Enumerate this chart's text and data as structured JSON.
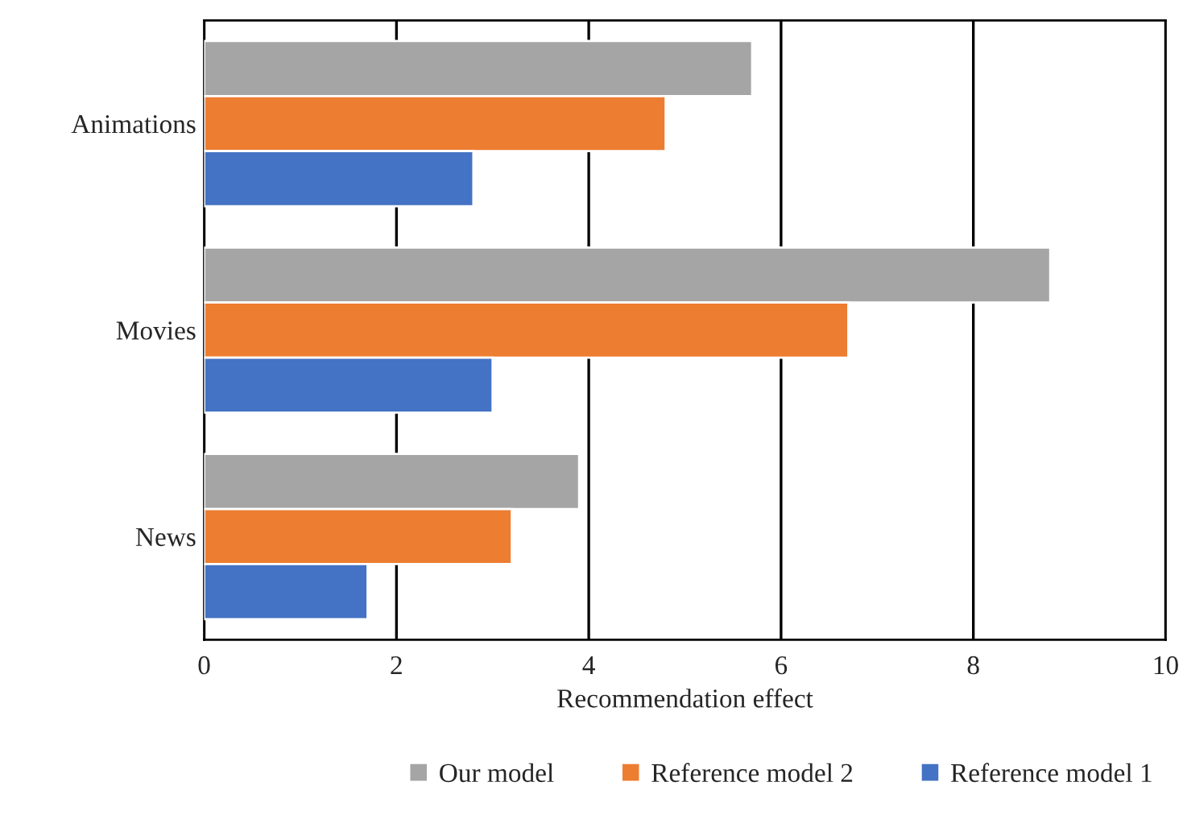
{
  "chart_data": {
    "type": "bar",
    "orientation": "horizontal",
    "xlabel": "Recommendation effect",
    "categories": [
      "Animations",
      "Movies",
      "News"
    ],
    "series": [
      {
        "name": "Our model",
        "color": "#a5a5a5",
        "values": [
          5.7,
          8.8,
          3.9
        ]
      },
      {
        "name": "Reference model 2",
        "color": "#ed7d31",
        "values": [
          4.8,
          6.7,
          3.2
        ]
      },
      {
        "name": "Reference model 1",
        "color": "#4472c4",
        "values": [
          2.8,
          3.0,
          1.7
        ]
      }
    ],
    "xlim": [
      0,
      10
    ],
    "xticks": [
      0,
      2,
      4,
      6,
      8,
      10
    ],
    "grid": "x",
    "legend": "bottom"
  }
}
